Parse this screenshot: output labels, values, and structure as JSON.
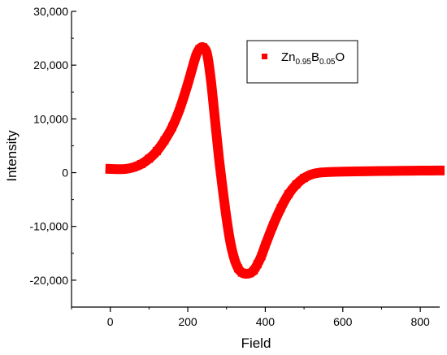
{
  "chart_data": {
    "type": "scatter",
    "title": "",
    "xlabel": "Field",
    "ylabel": "Intensity",
    "xlim": [
      -100,
      850
    ],
    "ylim": [
      -25000,
      30000
    ],
    "x_ticks": [
      0,
      200,
      400,
      600,
      800
    ],
    "x_tick_labels": [
      "0",
      "200",
      "400",
      "600",
      "800"
    ],
    "y_ticks": [
      30000,
      20000,
      10000,
      0,
      -10000,
      -20000
    ],
    "y_tick_labels": [
      "30,000",
      "20,000",
      "10,000",
      "0",
      "-10,000",
      "-20,000"
    ],
    "grid": false,
    "legend": {
      "placement": "top-right",
      "entries": [
        {
          "marker": "square",
          "base": "Zn",
          "sub1": "0.95",
          "mid": "B",
          "sub2": "0.05",
          "tail": "O"
        }
      ]
    },
    "colors": {
      "series": "#ff0000",
      "axis": "#000000"
    },
    "series": [
      {
        "name": "Zn0.95B0.05O",
        "marker": "square",
        "x": [
          0,
          20,
          40,
          60,
          80,
          100,
          120,
          140,
          160,
          180,
          200,
          220,
          230,
          240,
          250,
          260,
          270,
          280,
          290,
          300,
          310,
          320,
          330,
          340,
          350,
          360,
          370,
          380,
          390,
          400,
          420,
          440,
          460,
          480,
          500,
          520,
          540,
          560,
          580,
          600,
          650,
          700,
          750,
          800,
          850
        ],
        "y": [
          700,
          650,
          700,
          1000,
          1600,
          2600,
          4000,
          6000,
          8500,
          12000,
          16500,
          21500,
          23000,
          23300,
          22000,
          17000,
          10000,
          3000,
          -3000,
          -8500,
          -13000,
          -16000,
          -17800,
          -18600,
          -18800,
          -18700,
          -18200,
          -17000,
          -15500,
          -13500,
          -9800,
          -6600,
          -4000,
          -2200,
          -1000,
          -300,
          0,
          100,
          150,
          200,
          250,
          300,
          350,
          380,
          400
        ]
      }
    ]
  }
}
